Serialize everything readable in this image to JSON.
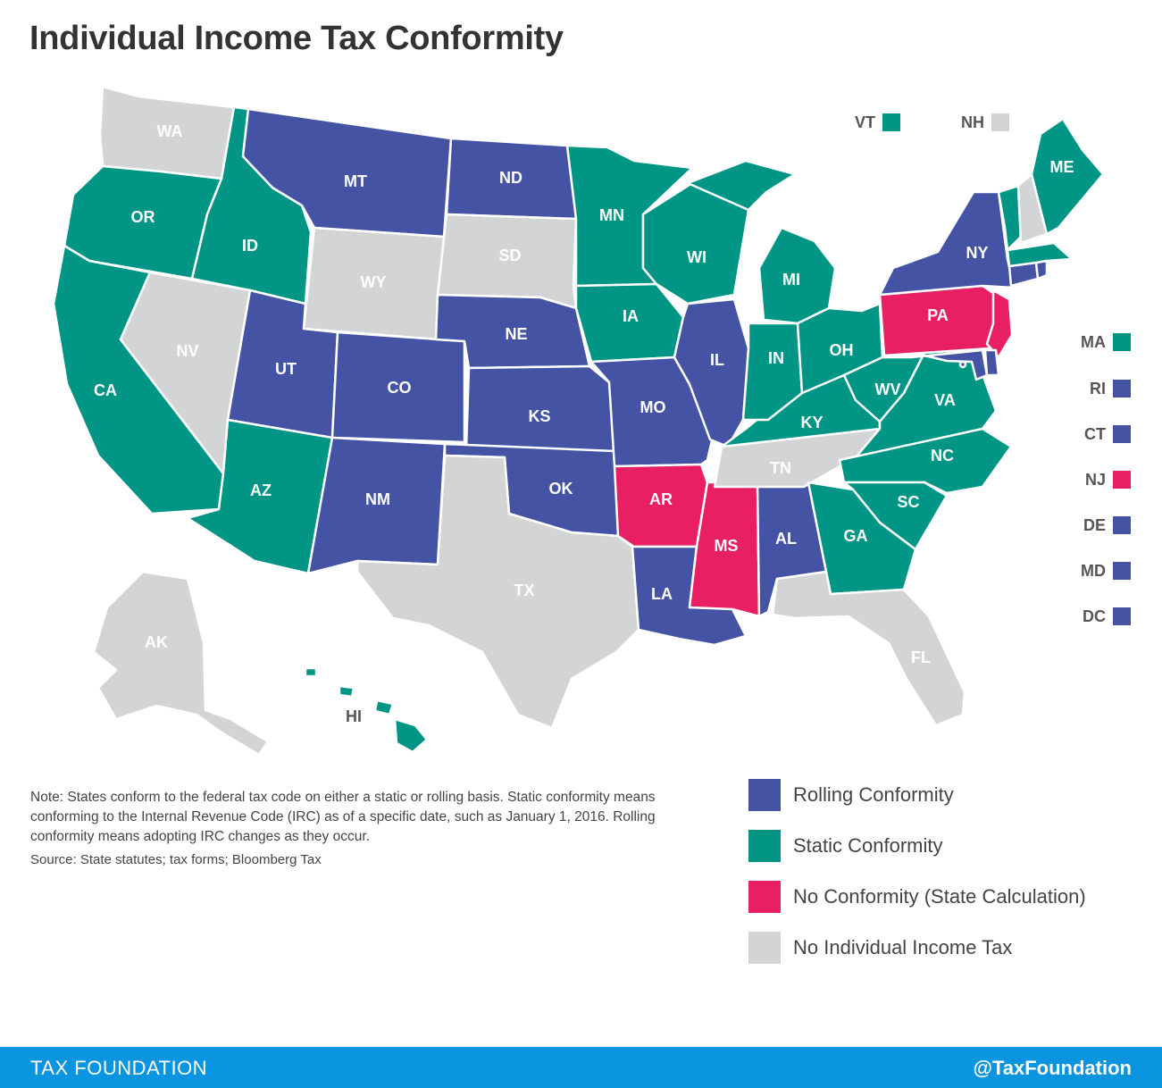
{
  "title": "Individual Income Tax Conformity",
  "colors": {
    "rolling": "#4453a4",
    "static": "#009585",
    "none": "#e81f63",
    "no_tax": "#d3d4d6",
    "footer": "#0b94e0"
  },
  "categories": {
    "rolling": "Rolling Conformity",
    "static": "Static Conformity",
    "none": "No Conformity (State Calculation)",
    "no_tax": "No Individual Income Tax"
  },
  "states": {
    "WA": "no_tax",
    "OR": "static",
    "CA": "static",
    "NV": "no_tax",
    "ID": "static",
    "MT": "rolling",
    "WY": "no_tax",
    "UT": "rolling",
    "AZ": "static",
    "CO": "rolling",
    "NM": "rolling",
    "ND": "rolling",
    "SD": "no_tax",
    "NE": "rolling",
    "KS": "rolling",
    "OK": "rolling",
    "TX": "no_tax",
    "MN": "static",
    "IA": "static",
    "MO": "rolling",
    "AR": "none",
    "LA": "rolling",
    "WI": "static",
    "IL": "rolling",
    "MS": "none",
    "MI": "static",
    "IN": "static",
    "KY": "static",
    "TN": "no_tax",
    "AL": "rolling",
    "OH": "static",
    "GA": "static",
    "FL": "no_tax",
    "SC": "static",
    "NC": "static",
    "VA": "static",
    "WV": "static",
    "PA": "none",
    "NY": "rolling",
    "ME": "static",
    "AK": "no_tax",
    "HI": "static",
    "NJ": "none",
    "VT": "static",
    "NH": "no_tax",
    "MA": "static",
    "CT": "rolling",
    "RI": "rolling",
    "DE": "rolling",
    "MD": "rolling",
    "DC": "rolling"
  },
  "small_states_top": [
    {
      "abbr": "VT",
      "cat": "static"
    },
    {
      "abbr": "NH",
      "cat": "no_tax"
    }
  ],
  "small_states_side": [
    {
      "abbr": "MA",
      "cat": "static"
    },
    {
      "abbr": "RI",
      "cat": "rolling"
    },
    {
      "abbr": "CT",
      "cat": "rolling"
    },
    {
      "abbr": "NJ",
      "cat": "none"
    },
    {
      "abbr": "DE",
      "cat": "rolling"
    },
    {
      "abbr": "MD",
      "cat": "rolling"
    },
    {
      "abbr": "DC",
      "cat": "rolling"
    }
  ],
  "note": "Note: States conform to the federal tax code on either a static or rolling basis. Static conformity means conforming to the Internal Revenue Code (IRC) as of a specific date, such as January 1, 2016. Rolling conformity means adopting IRC changes as they occur.",
  "source": "Source:  State statutes; tax forms; Bloomberg Tax",
  "legend": [
    {
      "cat": "rolling",
      "label": "Rolling Conformity"
    },
    {
      "cat": "static",
      "label": "Static Conformity"
    },
    {
      "cat": "none",
      "label": "No Conformity (State Calculation)"
    },
    {
      "cat": "no_tax",
      "label": "No Individual Income Tax"
    }
  ],
  "footer": {
    "left": "TAX FOUNDATION",
    "right": "@TaxFoundation"
  }
}
